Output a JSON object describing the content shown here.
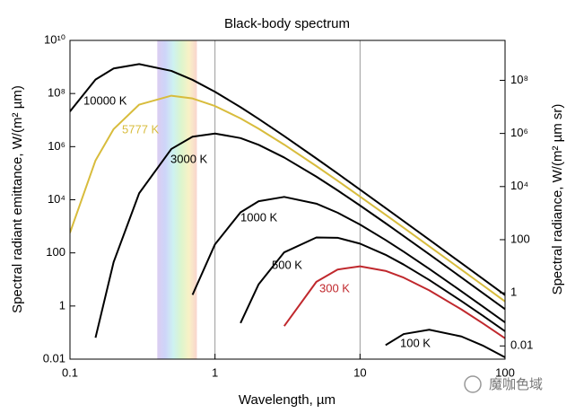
{
  "chart_data": {
    "type": "line",
    "title": "Black-body spectrum",
    "x_label": "Wavelength, µm",
    "y_label": "Spectral radiant emittance, W/(m² µm)",
    "y2_label": "Spectral radiance, W/(m² µm sr)",
    "log_x": true,
    "log_y": true,
    "x": [
      0.1,
      0.15,
      0.2,
      0.3,
      0.5,
      0.7,
      1,
      1.5,
      2,
      3,
      5,
      7,
      10,
      15,
      20,
      30,
      50,
      70,
      100
    ],
    "xlim": [
      0.1,
      100
    ],
    "xticks": [
      0.1,
      1,
      10,
      100
    ],
    "ylim": [
      0.01,
      10000000000
    ],
    "yticks": [
      0.01,
      1,
      100,
      {
        "value": 10000,
        "label": "10⁴"
      },
      {
        "value": 1000000,
        "label": "10⁶"
      },
      {
        "value": 100000000,
        "label": "10⁸"
      },
      {
        "value": 10000000000,
        "label": "10¹⁰"
      }
    ],
    "y2lim": [
      0.003183,
      3183000000
    ],
    "y2ticks": [
      0.01,
      1,
      100,
      {
        "value": 10000,
        "label": "10⁴"
      },
      {
        "value": 1000000,
        "label": "10⁶"
      },
      {
        "value": 100000000,
        "label": "10⁸"
      }
    ],
    "grid_x": true,
    "shaded_band": [
      0.4,
      0.75
    ],
    "series": [
      {
        "name": "10000 K",
        "color": "#000000",
        "values": [
          21100000,
          336000000,
          878000000,
          1283000000,
          713000000,
          327000000,
          116400000,
          30600000,
          11100000,
          2500000,
          359000,
          97500,
          24200,
          4894,
          1567,
          313.5,
          41.0,
          10.72,
          2.58
        ]
      },
      {
        "name": "5777 K",
        "color": "#d8bc3c",
        "values": [
          573,
          302000,
          4570000,
          38200000,
          82800000,
          65300000,
          33800000,
          11560000,
          4730000,
          1190000,
          185400,
          52100,
          13230,
          2728,
          881.6,
          177.9,
          23.44,
          6.15,
          1.484
        ]
      },
      {
        "name": "3000 K",
        "color": "#000000",
        "values": [
          null,
          0.064,
          45.1,
          17560,
          817000,
          2360000,
          3120000,
          2100000,
          1169000,
          390000,
          74300,
          22600,
          6081,
          1308,
          431.4,
          88.8,
          11.89,
          3.139,
          0.762
        ]
      },
      {
        "name": "1000 K",
        "color": "#000000",
        "values": [
          null,
          null,
          null,
          null,
          null,
          2.64,
          211,
          3363,
          8790,
          12830,
          7134,
          3269,
          1164,
          306,
          111.0,
          25.0,
          3.59,
          0.975,
          0.242
        ]
      },
      {
        "name": "500 K",
        "color": "#000000",
        "values": [
          null,
          null,
          null,
          null,
          null,
          null,
          null,
          0.229,
          6.6,
          105,
          380,
          371,
          223,
          84.8,
          36.3,
          9.57,
          1.539,
          0.438,
          0.1122
        ]
      },
      {
        "name": "300 K",
        "color": "#c0282d",
        "values": [
          null,
          null,
          null,
          null,
          null,
          null,
          null,
          null,
          null,
          0.1756,
          8.17,
          23.6,
          31.2,
          21.0,
          11.69,
          3.9,
          0.743,
          0.226,
          0.0608
        ]
      },
      {
        "name": "100 K",
        "color": "#000000",
        "values": [
          null,
          null,
          null,
          null,
          null,
          null,
          null,
          null,
          null,
          null,
          null,
          null,
          null,
          0.0336,
          0.0879,
          0.1283,
          0.0713,
          0.0327,
          0.01164
        ]
      }
    ],
    "watermark": "魔咖色域"
  }
}
